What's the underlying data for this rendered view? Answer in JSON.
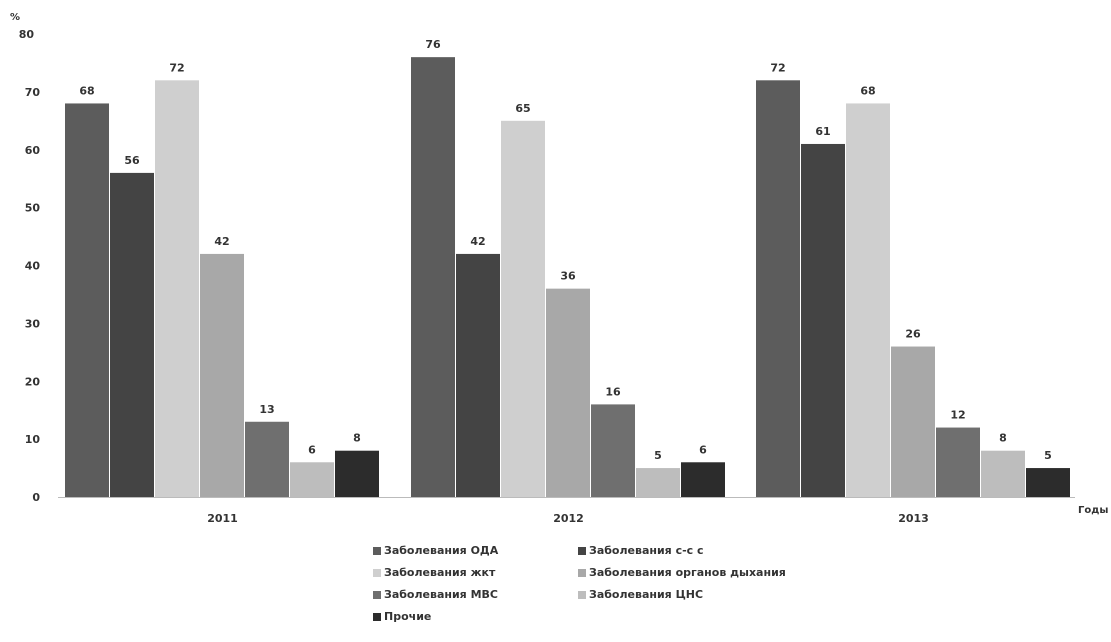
{
  "chart_data": {
    "type": "bar",
    "ylabel": "%",
    "xlabel": "Годы",
    "categories": [
      "2011",
      "2012",
      "2013"
    ],
    "ylim": [
      0,
      80
    ],
    "yticks": [
      "0",
      "10",
      "20",
      "30",
      "40",
      "50",
      "60",
      "70",
      "80"
    ],
    "grid": false,
    "legend_position": "bottom",
    "series": [
      {
        "name": "Заболевания ОДА",
        "values": [
          68,
          76,
          72
        ],
        "color": "#5c5c5c"
      },
      {
        "name": "Заболевания с-с с",
        "values": [
          56,
          42,
          61
        ],
        "color": "#444444"
      },
      {
        "name": "Заболевания жкт",
        "values": [
          72,
          65,
          68
        ],
        "color": "#cfcfcf"
      },
      {
        "name": "Заболевания органов дыхания",
        "values": [
          42,
          36,
          26
        ],
        "color": "#a8a8a8"
      },
      {
        "name": "Заболевания МВС",
        "values": [
          13,
          16,
          12
        ],
        "color": "#6f6f6f"
      },
      {
        "name": "Заболевания ЦНС",
        "values": [
          6,
          5,
          8
        ],
        "color": "#bdbdbd"
      },
      {
        "name": "Прочие",
        "values": [
          8,
          6,
          5
        ],
        "color": "#2c2c2c"
      }
    ]
  }
}
